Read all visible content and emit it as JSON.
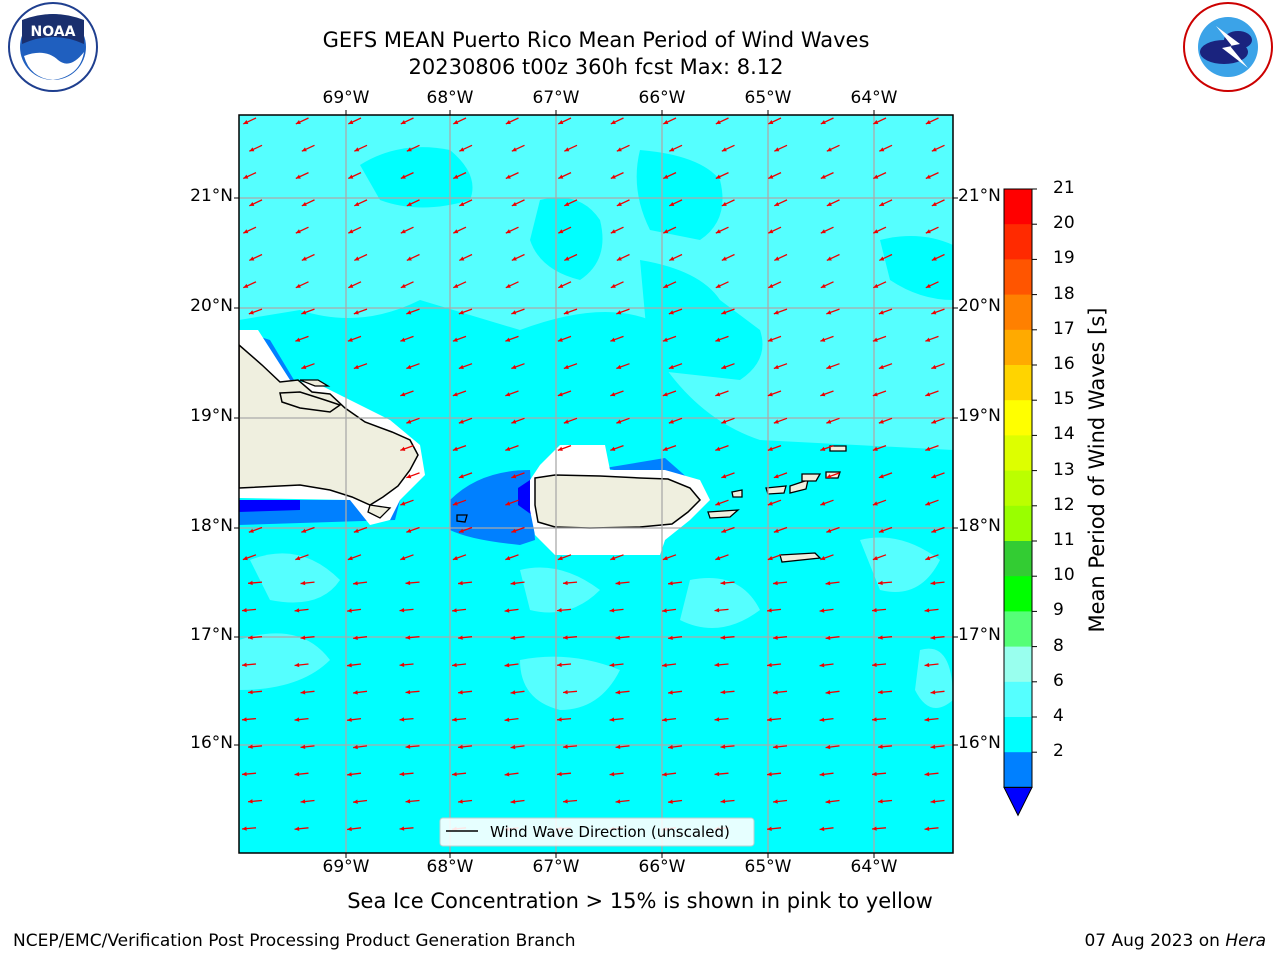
{
  "title": {
    "line1": "GEFS MEAN Puerto Rico Mean Period of Wind Waves",
    "line2": "20230806 t00z 360h fcst   Max: 8.12"
  },
  "logos": {
    "left": "NOAA",
    "right": "NATIONAL WEATHER SERVICE"
  },
  "axes": {
    "lon_labels": [
      "69°W",
      "68°W",
      "67°W",
      "66°W",
      "65°W",
      "64°W"
    ],
    "lat_labels": [
      "21°N",
      "20°N",
      "19°N",
      "18°N",
      "17°N",
      "16°N"
    ],
    "grid": true
  },
  "legend": {
    "label": "Wind Wave Direction (unscaled)"
  },
  "colorbar": {
    "title": "Mean Period of Wind Waves [s]",
    "ticks": [
      "21",
      "20",
      "19",
      "18",
      "17",
      "16",
      "15",
      "14",
      "13",
      "12",
      "11",
      "10",
      "9",
      "8",
      "6",
      "4",
      "2"
    ],
    "colors": [
      "#ff0000",
      "#ff2a00",
      "#ff5500",
      "#ff8000",
      "#ffaa00",
      "#ffd400",
      "#ffff00",
      "#ddff00",
      "#bbff00",
      "#99ff00",
      "#33cc33",
      "#00ff00",
      "#55ff77",
      "#99ffee",
      "#55ffff",
      "#00ffff",
      "#0080ff"
    ],
    "under_color": "#0000ff",
    "extend": "min"
  },
  "map": {
    "ocean_colors": {
      "light": "#55ffff",
      "cyan": "#00ffff",
      "blue": "#0080ff",
      "dark_blue": "#0000ff"
    },
    "land_color": "#efefdf",
    "arrow_color": "#ee0000"
  },
  "note": "Sea Ice Concentration > 15% is shown in pink to yellow",
  "credits": {
    "left": "NCEP/EMC/Verification Post Processing Product Generation Branch",
    "right_date": "07 Aug 2023 on ",
    "right_host": "Hera"
  }
}
